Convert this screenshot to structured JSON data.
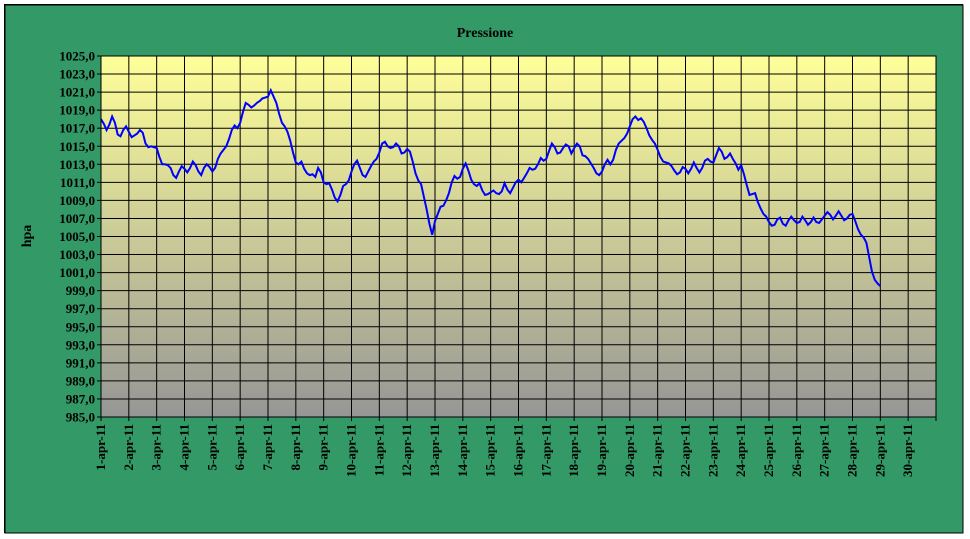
{
  "colors": {
    "chart_background": "#339966",
    "plot_top": "#ffff99",
    "plot_bottom": "#969696",
    "line": "#0000ff",
    "grid": "#000000"
  },
  "chart_data": {
    "type": "line",
    "title": "Pressione",
    "xlabel": "",
    "ylabel": "hpa",
    "ylim": [
      985,
      1025
    ],
    "ytick_step": 2,
    "grid": true,
    "legend": "none",
    "x_categories": [
      "1-apr-11",
      "2-apr-11",
      "3-apr-11",
      "4-apr-11",
      "5-apr-11",
      "6-apr-11",
      "7-apr-11",
      "8-apr-11",
      "9-apr-11",
      "10-apr-11",
      "11-apr-11",
      "12-apr-11",
      "13-apr-11",
      "14-apr-11",
      "15-apr-11",
      "16-apr-11",
      "17-apr-11",
      "18-apr-11",
      "19-apr-11",
      "20-apr-11",
      "21-apr-11",
      "22-apr-11",
      "23-apr-11",
      "24-apr-11",
      "25-apr-11",
      "26-apr-11",
      "27-apr-11",
      "28-apr-11",
      "29-apr-11",
      "30-apr-11"
    ],
    "x_unit": "days since 1-apr-11 00:00",
    "series": [
      {
        "points": [
          [
            0.0,
            1018.0
          ],
          [
            0.1,
            1017.5
          ],
          [
            0.2,
            1016.8
          ],
          [
            0.3,
            1017.4
          ],
          [
            0.4,
            1018.3
          ],
          [
            0.5,
            1017.6
          ],
          [
            0.6,
            1016.3
          ],
          [
            0.7,
            1016.1
          ],
          [
            0.8,
            1016.8
          ],
          [
            0.9,
            1017.2
          ],
          [
            1.0,
            1016.6
          ],
          [
            1.1,
            1016.0
          ],
          [
            1.2,
            1016.2
          ],
          [
            1.3,
            1016.4
          ],
          [
            1.4,
            1016.8
          ],
          [
            1.5,
            1016.5
          ],
          [
            1.6,
            1015.3
          ],
          [
            1.7,
            1014.9
          ],
          [
            1.8,
            1015.0
          ],
          [
            1.9,
            1014.9
          ],
          [
            2.0,
            1014.8
          ],
          [
            2.1,
            1013.8
          ],
          [
            2.2,
            1013.0
          ],
          [
            2.3,
            1013.0
          ],
          [
            2.4,
            1012.9
          ],
          [
            2.5,
            1012.6
          ],
          [
            2.6,
            1011.8
          ],
          [
            2.7,
            1011.5
          ],
          [
            2.8,
            1012.2
          ],
          [
            2.9,
            1012.8
          ],
          [
            3.0,
            1012.5
          ],
          [
            3.1,
            1012.1
          ],
          [
            3.2,
            1012.6
          ],
          [
            3.3,
            1013.3
          ],
          [
            3.4,
            1012.9
          ],
          [
            3.5,
            1012.2
          ],
          [
            3.6,
            1011.8
          ],
          [
            3.7,
            1012.6
          ],
          [
            3.8,
            1013.0
          ],
          [
            3.9,
            1012.7
          ],
          [
            4.0,
            1012.2
          ],
          [
            4.1,
            1012.6
          ],
          [
            4.2,
            1013.6
          ],
          [
            4.3,
            1014.2
          ],
          [
            4.4,
            1014.6
          ],
          [
            4.5,
            1015.0
          ],
          [
            4.6,
            1015.8
          ],
          [
            4.7,
            1016.8
          ],
          [
            4.8,
            1017.3
          ],
          [
            4.9,
            1017.0
          ],
          [
            5.0,
            1017.6
          ],
          [
            5.1,
            1018.8
          ],
          [
            5.2,
            1019.8
          ],
          [
            5.3,
            1019.6
          ],
          [
            5.4,
            1019.3
          ],
          [
            5.5,
            1019.5
          ],
          [
            5.6,
            1019.8
          ],
          [
            5.7,
            1020.0
          ],
          [
            5.8,
            1020.3
          ],
          [
            5.9,
            1020.4
          ],
          [
            6.0,
            1020.5
          ],
          [
            6.1,
            1021.2
          ],
          [
            6.2,
            1020.5
          ],
          [
            6.3,
            1019.8
          ],
          [
            6.4,
            1018.6
          ],
          [
            6.5,
            1017.6
          ],
          [
            6.6,
            1017.2
          ],
          [
            6.7,
            1016.6
          ],
          [
            6.8,
            1015.6
          ],
          [
            6.9,
            1014.3
          ],
          [
            7.0,
            1013.2
          ],
          [
            7.1,
            1013.0
          ],
          [
            7.2,
            1013.3
          ],
          [
            7.3,
            1012.5
          ],
          [
            7.4,
            1012.0
          ],
          [
            7.5,
            1011.8
          ],
          [
            7.6,
            1011.9
          ],
          [
            7.7,
            1011.6
          ],
          [
            7.8,
            1012.6
          ],
          [
            7.9,
            1012.1
          ],
          [
            8.0,
            1011.0
          ],
          [
            8.1,
            1010.8
          ],
          [
            8.2,
            1010.9
          ],
          [
            8.3,
            1010.2
          ],
          [
            8.4,
            1009.3
          ],
          [
            8.5,
            1008.9
          ],
          [
            8.6,
            1009.6
          ],
          [
            8.7,
            1010.6
          ],
          [
            8.8,
            1010.8
          ],
          [
            8.9,
            1011.2
          ],
          [
            9.0,
            1012.2
          ],
          [
            9.1,
            1013.0
          ],
          [
            9.2,
            1013.4
          ],
          [
            9.3,
            1012.6
          ],
          [
            9.4,
            1011.8
          ],
          [
            9.5,
            1011.6
          ],
          [
            9.6,
            1012.2
          ],
          [
            9.7,
            1012.8
          ],
          [
            9.8,
            1013.3
          ],
          [
            9.9,
            1013.6
          ],
          [
            10.0,
            1014.3
          ],
          [
            10.1,
            1015.3
          ],
          [
            10.2,
            1015.5
          ],
          [
            10.3,
            1015.0
          ],
          [
            10.4,
            1014.8
          ],
          [
            10.5,
            1014.9
          ],
          [
            10.6,
            1015.3
          ],
          [
            10.7,
            1015.0
          ],
          [
            10.8,
            1014.2
          ],
          [
            10.9,
            1014.3
          ],
          [
            11.0,
            1014.7
          ],
          [
            11.1,
            1014.4
          ],
          [
            11.2,
            1013.3
          ],
          [
            11.3,
            1012.0
          ],
          [
            11.4,
            1011.2
          ],
          [
            11.5,
            1010.8
          ],
          [
            11.6,
            1009.4
          ],
          [
            11.7,
            1008.0
          ],
          [
            11.8,
            1006.4
          ],
          [
            11.9,
            1005.2
          ],
          [
            12.0,
            1006.7
          ],
          [
            12.1,
            1007.5
          ],
          [
            12.2,
            1008.3
          ],
          [
            12.3,
            1008.4
          ],
          [
            12.4,
            1009.0
          ],
          [
            12.5,
            1009.8
          ],
          [
            12.6,
            1011.0
          ],
          [
            12.7,
            1011.7
          ],
          [
            12.8,
            1011.4
          ],
          [
            12.9,
            1011.6
          ],
          [
            13.0,
            1012.5
          ],
          [
            13.1,
            1013.1
          ],
          [
            13.2,
            1012.3
          ],
          [
            13.3,
            1011.3
          ],
          [
            13.4,
            1010.8
          ],
          [
            13.5,
            1010.6
          ],
          [
            13.6,
            1010.9
          ],
          [
            13.7,
            1010.1
          ],
          [
            13.8,
            1009.6
          ],
          [
            13.9,
            1009.7
          ],
          [
            14.0,
            1009.9
          ],
          [
            14.1,
            1010.1
          ],
          [
            14.2,
            1009.8
          ],
          [
            14.3,
            1009.7
          ],
          [
            14.4,
            1010.0
          ],
          [
            14.5,
            1010.9
          ],
          [
            14.6,
            1010.2
          ],
          [
            14.7,
            1009.8
          ],
          [
            14.8,
            1010.4
          ],
          [
            14.9,
            1011.0
          ],
          [
            15.0,
            1011.3
          ],
          [
            15.1,
            1011.0
          ],
          [
            15.2,
            1011.5
          ],
          [
            15.3,
            1012.0
          ],
          [
            15.4,
            1012.6
          ],
          [
            15.5,
            1012.4
          ],
          [
            15.6,
            1012.5
          ],
          [
            15.7,
            1013.0
          ],
          [
            15.8,
            1013.7
          ],
          [
            15.9,
            1013.4
          ],
          [
            16.0,
            1013.6
          ],
          [
            16.1,
            1014.5
          ],
          [
            16.2,
            1015.3
          ],
          [
            16.3,
            1014.9
          ],
          [
            16.4,
            1014.2
          ],
          [
            16.5,
            1014.3
          ],
          [
            16.6,
            1014.8
          ],
          [
            16.7,
            1015.2
          ],
          [
            16.8,
            1015.0
          ],
          [
            16.9,
            1014.2
          ],
          [
            17.0,
            1014.8
          ],
          [
            17.1,
            1015.3
          ],
          [
            17.2,
            1015.0
          ],
          [
            17.3,
            1014.0
          ],
          [
            17.4,
            1013.9
          ],
          [
            17.5,
            1013.6
          ],
          [
            17.6,
            1013.1
          ],
          [
            17.7,
            1012.6
          ],
          [
            17.8,
            1012.0
          ],
          [
            17.9,
            1011.8
          ],
          [
            18.0,
            1012.2
          ],
          [
            18.1,
            1013.0
          ],
          [
            18.2,
            1013.5
          ],
          [
            18.3,
            1013.0
          ],
          [
            18.4,
            1013.5
          ],
          [
            18.5,
            1014.6
          ],
          [
            18.6,
            1015.3
          ],
          [
            18.7,
            1015.6
          ],
          [
            18.8,
            1015.9
          ],
          [
            18.9,
            1016.4
          ],
          [
            19.0,
            1017.2
          ],
          [
            19.1,
            1018.0
          ],
          [
            19.2,
            1018.3
          ],
          [
            19.3,
            1017.9
          ],
          [
            19.4,
            1018.1
          ],
          [
            19.5,
            1017.7
          ],
          [
            19.6,
            1017.0
          ],
          [
            19.7,
            1016.2
          ],
          [
            19.8,
            1015.7
          ],
          [
            19.9,
            1015.3
          ],
          [
            20.0,
            1014.6
          ],
          [
            20.1,
            1013.8
          ],
          [
            20.2,
            1013.3
          ],
          [
            20.3,
            1013.2
          ],
          [
            20.4,
            1013.1
          ],
          [
            20.5,
            1012.8
          ],
          [
            20.6,
            1012.3
          ],
          [
            20.7,
            1011.9
          ],
          [
            20.8,
            1012.1
          ],
          [
            20.9,
            1012.7
          ],
          [
            21.0,
            1012.5
          ],
          [
            21.1,
            1012.0
          ],
          [
            21.2,
            1012.5
          ],
          [
            21.3,
            1013.2
          ],
          [
            21.4,
            1012.6
          ],
          [
            21.5,
            1012.1
          ],
          [
            21.6,
            1012.6
          ],
          [
            21.7,
            1013.4
          ],
          [
            21.8,
            1013.6
          ],
          [
            21.9,
            1013.3
          ],
          [
            22.0,
            1013.2
          ],
          [
            22.1,
            1014.0
          ],
          [
            22.2,
            1014.8
          ],
          [
            22.3,
            1014.4
          ],
          [
            22.4,
            1013.6
          ],
          [
            22.5,
            1013.8
          ],
          [
            22.6,
            1014.2
          ],
          [
            22.7,
            1013.6
          ],
          [
            22.8,
            1013.1
          ],
          [
            22.9,
            1012.4
          ],
          [
            23.0,
            1012.9
          ],
          [
            23.1,
            1011.9
          ],
          [
            23.2,
            1010.7
          ],
          [
            23.3,
            1009.6
          ],
          [
            23.4,
            1009.7
          ],
          [
            23.5,
            1009.8
          ],
          [
            23.6,
            1008.8
          ],
          [
            23.7,
            1008.1
          ],
          [
            23.8,
            1007.5
          ],
          [
            23.9,
            1007.2
          ],
          [
            24.0,
            1006.6
          ],
          [
            24.1,
            1006.2
          ],
          [
            24.2,
            1006.3
          ],
          [
            24.3,
            1006.9
          ],
          [
            24.4,
            1007.1
          ],
          [
            24.5,
            1006.4
          ],
          [
            24.6,
            1006.2
          ],
          [
            24.7,
            1006.8
          ],
          [
            24.8,
            1007.2
          ],
          [
            24.9,
            1006.8
          ],
          [
            25.0,
            1006.5
          ],
          [
            25.1,
            1006.6
          ],
          [
            25.2,
            1007.2
          ],
          [
            25.3,
            1006.8
          ],
          [
            25.4,
            1006.3
          ],
          [
            25.5,
            1006.6
          ],
          [
            25.6,
            1007.1
          ],
          [
            25.7,
            1006.6
          ],
          [
            25.8,
            1006.5
          ],
          [
            25.9,
            1006.9
          ],
          [
            26.0,
            1007.3
          ],
          [
            26.1,
            1007.7
          ],
          [
            26.2,
            1007.4
          ],
          [
            26.3,
            1006.9
          ],
          [
            26.4,
            1007.3
          ],
          [
            26.5,
            1007.8
          ],
          [
            26.6,
            1007.3
          ],
          [
            26.7,
            1006.8
          ],
          [
            26.8,
            1007.0
          ],
          [
            26.9,
            1007.4
          ],
          [
            27.0,
            1007.5
          ],
          [
            27.1,
            1006.7
          ],
          [
            27.2,
            1005.8
          ],
          [
            27.3,
            1005.2
          ],
          [
            27.4,
            1004.9
          ],
          [
            27.5,
            1004.3
          ],
          [
            27.6,
            1002.7
          ],
          [
            27.7,
            1001.1
          ],
          [
            27.8,
            1000.2
          ],
          [
            27.9,
            999.8
          ],
          [
            28.0,
            999.5
          ]
        ]
      }
    ]
  }
}
